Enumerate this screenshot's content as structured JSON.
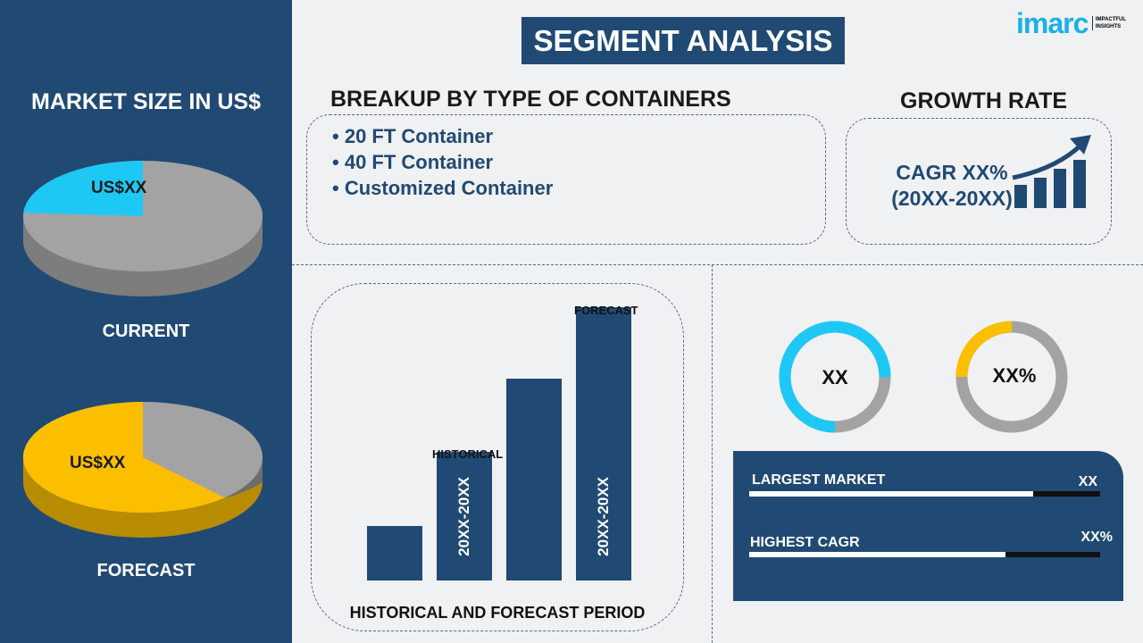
{
  "title": "SEGMENT ANALYSIS",
  "logo": {
    "brand": "imarc",
    "tagline_1": "IMPACTFUL",
    "tagline_2": "INSIGHTS"
  },
  "left": {
    "heading": "MARKET SIZE IN US$",
    "current": {
      "value": "US$XX",
      "label": "CURRENT",
      "share_pct": 24,
      "color": "#1ec8f5"
    },
    "forecast": {
      "value": "US$XX",
      "label": "FORECAST",
      "share_pct": 62,
      "color": "#fbbf00"
    }
  },
  "breakup": {
    "heading": "BREAKUP BY TYPE OF CONTAINERS",
    "items": [
      "20 FT Container",
      "40 FT Container",
      "Customized Container"
    ]
  },
  "growth": {
    "heading": "GROWTH RATE",
    "cagr": "CAGR XX%",
    "period": "(20XX-20XX)"
  },
  "bars": {
    "values": [
      20,
      47,
      74,
      100
    ],
    "historical_label": "HISTORICAL",
    "forecast_label": "FORECAST",
    "bar2_text": "20XX-20XX",
    "bar4_text": "20XX-20XX",
    "axis_label": "HISTORICAL AND FORECAST PERIOD"
  },
  "donuts": [
    {
      "value": "XX",
      "fill_pct": 75,
      "color": "#1ec8f5"
    },
    {
      "value": "XX%",
      "fill_pct": 25,
      "color": "#fbbf00"
    }
  ],
  "stats": [
    {
      "label": "LARGEST MARKET",
      "value": "XX",
      "fill_pct": 81
    },
    {
      "label": "HIGHEST CAGR",
      "value": "XX%",
      "fill_pct": 73
    }
  ]
}
